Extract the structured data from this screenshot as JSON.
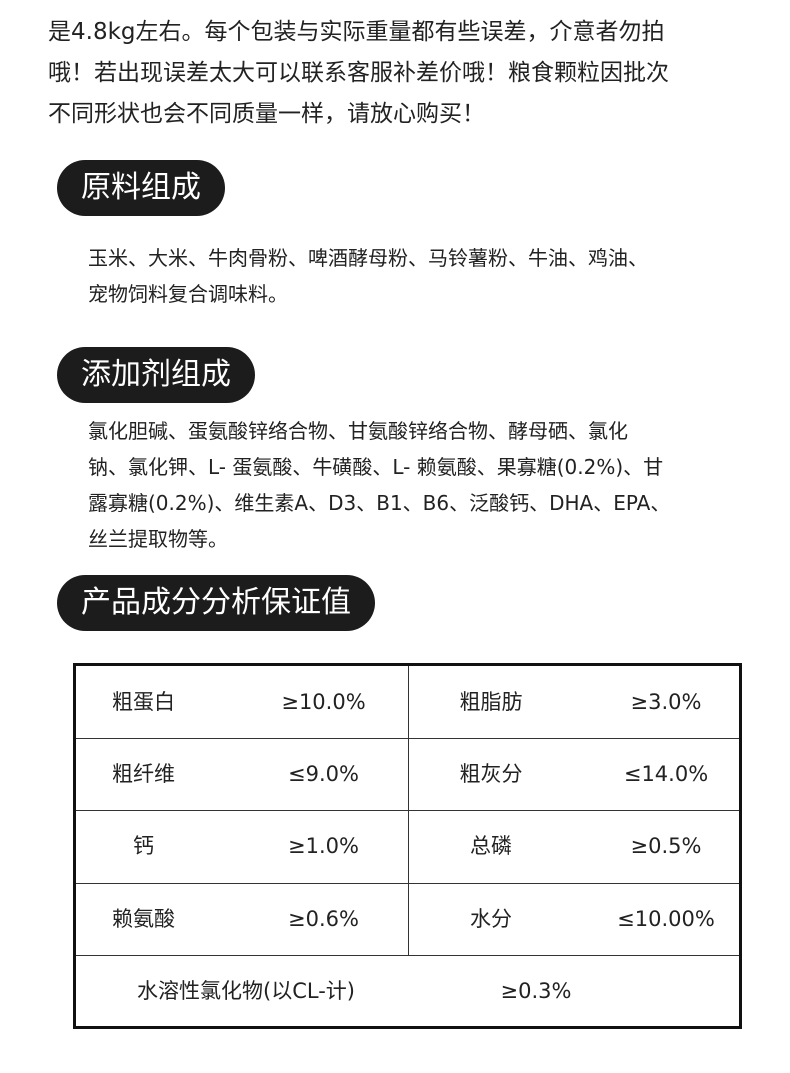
{
  "intro": {
    "lines": [
      "是4.8kg左右。每个包装与实际重量都有些误差，介意者勿拍",
      "哦！若出现误差太大可以联系客服补差价哦！粮食颗粒因批次",
      "不同形状也会不同质量一样，请放心购买！"
    ]
  },
  "sections": [
    {
      "title": "原料组成",
      "lines": [
        "玉米、大米、牛肉骨粉、啤酒酵母粉、马铃薯粉、牛油、鸡油、",
        "宠物饲料复合调味料。"
      ]
    },
    {
      "title": "添加剂组成",
      "lines": [
        "氯化胆碱、蛋氨酸锌络合物、甘氨酸锌络合物、酵母硒、氯化",
        "钠、氯化钾、L- 蛋氨酸、牛磺酸、L- 赖氨酸、果寡糖(0.2%)、甘",
        "露寡糖(0.2%)、维生素A、D3、B1、B6、泛酸钙、DHA、EPA、",
        "丝兰提取物等。"
      ]
    }
  ],
  "table": {
    "title": "产品成分分析保证值",
    "rows": [
      [
        "粗蛋白",
        "≥10.0%",
        "粗脂肪",
        "≥3.0%"
      ],
      [
        "粗纤维",
        "≤9.0%",
        "粗灰分",
        "≤14.0%"
      ],
      [
        "钙",
        "≥1.0%",
        "总磷",
        "≥0.5%"
      ],
      [
        "赖氨酸",
        "≥0.6%",
        "水分",
        "≤10.00%"
      ]
    ],
    "footer": [
      "水溶性氯化物(以CL-计)",
      "≥0.3%"
    ]
  }
}
